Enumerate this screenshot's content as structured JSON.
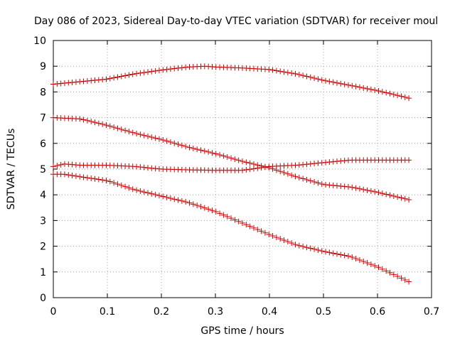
{
  "chart_data": {
    "type": "scatter",
    "title": "Day 086 of 2023, Sidereal Day-to-day VTEC variation (SDTVAR) for receiver moul",
    "xlabel": "GPS time / hours",
    "ylabel": "SDTVAR / TECUs",
    "xlim": [
      0,
      0.7
    ],
    "ylim": [
      0,
      10
    ],
    "xticks": [
      0,
      0.1,
      0.2,
      0.3,
      0.4,
      0.5,
      0.6,
      0.7
    ],
    "xtick_labels": [
      "0",
      "0.1",
      "0.2",
      "0.3",
      "0.4",
      "0.5",
      "0.6",
      "0.7"
    ],
    "yticks": [
      0,
      1,
      2,
      3,
      4,
      5,
      6,
      7,
      8,
      9,
      10
    ],
    "ytick_labels": [
      "0",
      "1",
      "2",
      "3",
      "4",
      "5",
      "6",
      "7",
      "8",
      "9",
      "10"
    ],
    "grid": true,
    "marker": "plus",
    "color": "#cc0000",
    "series": [
      {
        "name": "series-1",
        "x": [
          0,
          0.05,
          0.1,
          0.15,
          0.2,
          0.25,
          0.28,
          0.3,
          0.35,
          0.4,
          0.45,
          0.5,
          0.55,
          0.6,
          0.66
        ],
        "y": [
          8.3,
          8.4,
          8.5,
          8.7,
          8.85,
          8.97,
          9.0,
          8.97,
          8.93,
          8.87,
          8.7,
          8.45,
          8.25,
          8.05,
          7.75
        ]
      },
      {
        "name": "series-2",
        "x": [
          0,
          0.05,
          0.1,
          0.15,
          0.2,
          0.25,
          0.3,
          0.35,
          0.4,
          0.45,
          0.5,
          0.55,
          0.6,
          0.66
        ],
        "y": [
          7.0,
          6.95,
          6.7,
          6.4,
          6.15,
          5.85,
          5.6,
          5.3,
          5.05,
          4.7,
          4.4,
          4.3,
          4.1,
          3.8
        ]
      },
      {
        "name": "series-3",
        "x": [
          0,
          0.02,
          0.05,
          0.1,
          0.15,
          0.2,
          0.25,
          0.3,
          0.35,
          0.4,
          0.45,
          0.5,
          0.55,
          0.6,
          0.66
        ],
        "y": [
          5.1,
          5.2,
          5.15,
          5.15,
          5.1,
          5.0,
          4.97,
          4.95,
          4.95,
          5.1,
          5.15,
          5.25,
          5.35,
          5.35,
          5.35
        ]
      },
      {
        "name": "series-4",
        "x": [
          0,
          0.02,
          0.05,
          0.1,
          0.15,
          0.2,
          0.25,
          0.3,
          0.35,
          0.4,
          0.45,
          0.5,
          0.55,
          0.6,
          0.66
        ],
        "y": [
          4.8,
          4.8,
          4.7,
          4.55,
          4.2,
          3.95,
          3.7,
          3.35,
          2.9,
          2.45,
          2.05,
          1.8,
          1.6,
          1.2,
          0.6
        ]
      }
    ]
  }
}
